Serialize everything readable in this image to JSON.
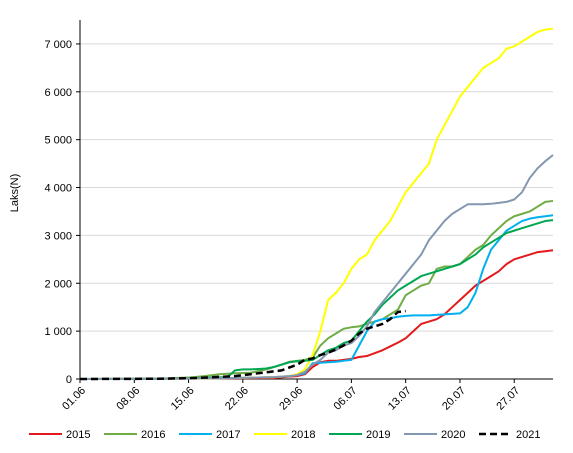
{
  "chart_data": {
    "type": "line",
    "ylabel": "Laks(N)",
    "xlabel": "",
    "title": "",
    "ylim": [
      0,
      7500
    ],
    "xlim": [
      0,
      61
    ],
    "grid": "horizontal",
    "legend_position": "bottom",
    "y_ticks": [
      {
        "value": 0,
        "label": "0"
      },
      {
        "value": 1000,
        "label": "1 000"
      },
      {
        "value": 2000,
        "label": "2 000"
      },
      {
        "value": 3000,
        "label": "3 000"
      },
      {
        "value": 4000,
        "label": "4 000"
      },
      {
        "value": 5000,
        "label": "5 000"
      },
      {
        "value": 6000,
        "label": "6 000"
      },
      {
        "value": 7000,
        "label": "7 000"
      }
    ],
    "x_ticks": [
      {
        "value": 0,
        "label": "01.06"
      },
      {
        "value": 7,
        "label": "08.06"
      },
      {
        "value": 14,
        "label": "15.06"
      },
      {
        "value": 21,
        "label": "22.06"
      },
      {
        "value": 28,
        "label": "29.06"
      },
      {
        "value": 35,
        "label": "06.07"
      },
      {
        "value": 42,
        "label": "13.07"
      },
      {
        "value": 49,
        "label": "20.07"
      },
      {
        "value": 56,
        "label": "27.07"
      }
    ],
    "series": [
      {
        "name": "2015",
        "color": "#e31a1c",
        "dash": "solid",
        "x": [
          0,
          10,
          15,
          20,
          25,
          27,
          28,
          29,
          30,
          31,
          32,
          33,
          34,
          35,
          36,
          37,
          38,
          39,
          40,
          41,
          42,
          43,
          44,
          45,
          46,
          47,
          48,
          49,
          50,
          51,
          52,
          53,
          54,
          55,
          56,
          57,
          58,
          59,
          60,
          61
        ],
        "y": [
          0,
          5,
          10,
          15,
          20,
          50,
          60,
          100,
          250,
          350,
          380,
          380,
          400,
          420,
          460,
          480,
          540,
          600,
          680,
          760,
          850,
          1000,
          1150,
          1200,
          1250,
          1350,
          1500,
          1650,
          1800,
          1950,
          2050,
          2150,
          2250,
          2400,
          2500,
          2550,
          2600,
          2650,
          2670,
          2690
        ]
      },
      {
        "name": "2016",
        "color": "#70ad47",
        "dash": "solid",
        "x": [
          0,
          10,
          14,
          16,
          18,
          20,
          22,
          24,
          26,
          27,
          28,
          29,
          30,
          31,
          32,
          33,
          34,
          35,
          36,
          37,
          38,
          39,
          40,
          41,
          42,
          43,
          44,
          45,
          46,
          47,
          48,
          49,
          50,
          51,
          52,
          53,
          54,
          55,
          56,
          57,
          58,
          59,
          60,
          61
        ],
        "y": [
          0,
          5,
          30,
          60,
          100,
          120,
          130,
          200,
          300,
          360,
          380,
          400,
          450,
          700,
          850,
          950,
          1050,
          1080,
          1100,
          1150,
          1200,
          1250,
          1350,
          1450,
          1750,
          1850,
          1950,
          2000,
          2300,
          2350,
          2350,
          2400,
          2550,
          2700,
          2800,
          3000,
          3150,
          3300,
          3400,
          3450,
          3500,
          3600,
          3700,
          3720
        ]
      },
      {
        "name": "2017",
        "color": "#00b0f0",
        "dash": "solid",
        "x": [
          0,
          10,
          20,
          25,
          27,
          28,
          29,
          30,
          31,
          32,
          33,
          34,
          35,
          36,
          37,
          38,
          39,
          40,
          41,
          42,
          43,
          44,
          45,
          46,
          47,
          48,
          49,
          50,
          51,
          52,
          53,
          54,
          55,
          56,
          57,
          58,
          59,
          60,
          61
        ],
        "y": [
          0,
          5,
          20,
          40,
          60,
          80,
          120,
          330,
          340,
          350,
          360,
          380,
          400,
          700,
          1000,
          1200,
          1250,
          1270,
          1300,
          1320,
          1330,
          1330,
          1330,
          1340,
          1350,
          1360,
          1370,
          1500,
          1800,
          2300,
          2700,
          2900,
          3100,
          3200,
          3300,
          3350,
          3380,
          3400,
          3420
        ]
      },
      {
        "name": "2018",
        "color": "#ffff00",
        "dash": "solid",
        "x": [
          0,
          10,
          20,
          25,
          27,
          28,
          29,
          30,
          31,
          32,
          33,
          34,
          35,
          36,
          37,
          38,
          39,
          40,
          41,
          42,
          43,
          44,
          45,
          46,
          47,
          48,
          49,
          50,
          51,
          52,
          53,
          54,
          55,
          56,
          57,
          58,
          59,
          60,
          61
        ],
        "y": [
          0,
          5,
          20,
          40,
          60,
          100,
          200,
          500,
          1000,
          1650,
          1800,
          2000,
          2300,
          2500,
          2600,
          2900,
          3100,
          3300,
          3600,
          3900,
          4100,
          4300,
          4500,
          5000,
          5300,
          5600,
          5900,
          6100,
          6300,
          6500,
          6600,
          6700,
          6900,
          6950,
          7050,
          7150,
          7250,
          7300,
          7320
        ]
      },
      {
        "name": "2019",
        "color": "#00a651",
        "dash": "solid",
        "x": [
          0,
          10,
          15,
          19,
          20,
          21,
          22,
          23,
          24,
          25,
          26,
          27,
          28,
          29,
          30,
          31,
          32,
          33,
          34,
          35,
          36,
          37,
          38,
          39,
          40,
          41,
          42,
          43,
          44,
          45,
          46,
          47,
          48,
          49,
          50,
          51,
          52,
          53,
          54,
          55,
          56,
          57,
          58,
          59,
          60,
          61
        ],
        "y": [
          0,
          5,
          20,
          40,
          180,
          200,
          200,
          210,
          220,
          250,
          300,
          350,
          370,
          380,
          400,
          500,
          600,
          650,
          750,
          800,
          1000,
          1200,
          1350,
          1550,
          1700,
          1850,
          1950,
          2050,
          2150,
          2200,
          2250,
          2300,
          2350,
          2400,
          2500,
          2600,
          2750,
          2850,
          2950,
          3050,
          3100,
          3150,
          3200,
          3250,
          3300,
          3320
        ]
      },
      {
        "name": "2020",
        "color": "#8497b0",
        "dash": "solid",
        "x": [
          0,
          10,
          20,
          25,
          27,
          28,
          29,
          30,
          31,
          32,
          33,
          34,
          35,
          36,
          37,
          38,
          39,
          40,
          41,
          42,
          43,
          44,
          45,
          46,
          47,
          48,
          49,
          50,
          51,
          52,
          53,
          54,
          55,
          56,
          57,
          58,
          59,
          60,
          61
        ],
        "y": [
          0,
          5,
          20,
          40,
          60,
          80,
          150,
          300,
          400,
          550,
          600,
          700,
          750,
          900,
          1100,
          1400,
          1600,
          1800,
          2000,
          2200,
          2400,
          2600,
          2900,
          3100,
          3300,
          3450,
          3550,
          3650,
          3650,
          3650,
          3660,
          3680,
          3700,
          3750,
          3900,
          4200,
          4400,
          4550,
          4680
        ]
      },
      {
        "name": "2021",
        "color": "#000000",
        "dash": "dashed",
        "x": [
          0,
          10,
          15,
          20,
          22,
          24,
          26,
          28,
          29,
          30,
          31,
          32,
          33,
          34,
          35,
          36,
          37,
          38,
          39,
          40,
          41,
          42
        ],
        "y": [
          0,
          5,
          20,
          60,
          100,
          140,
          180,
          300,
          400,
          430,
          500,
          550,
          620,
          700,
          800,
          950,
          1050,
          1100,
          1150,
          1250,
          1400,
          1420
        ]
      }
    ]
  }
}
